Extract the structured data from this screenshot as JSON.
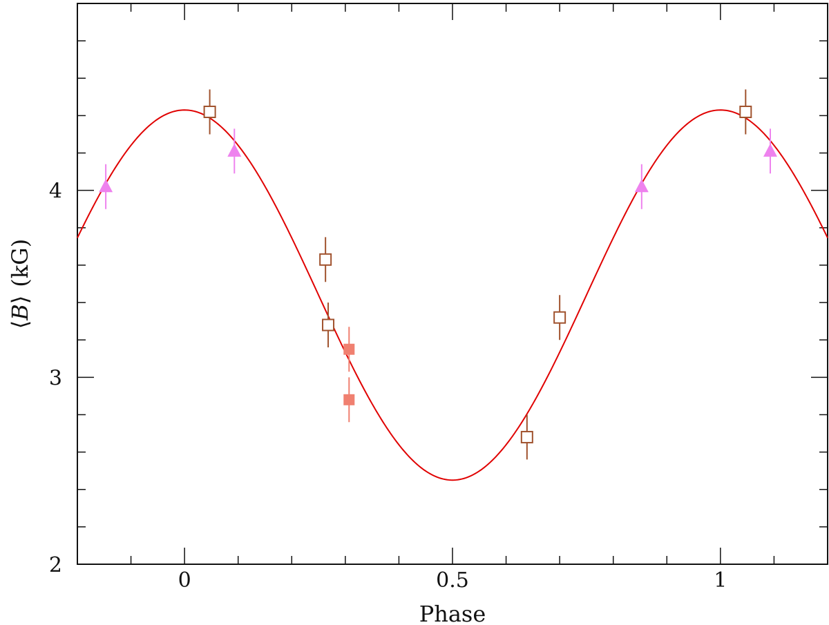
{
  "chart_data": {
    "type": "scatter",
    "xlabel": "Phase",
    "ylabel": "⟨B⟩ (kG)",
    "ylabel_parts": {
      "open": "⟨",
      "var": "B",
      "close": "⟩",
      "unit": "(kG)"
    },
    "xlim": [
      -0.2,
      1.2
    ],
    "ylim": [
      2,
      5
    ],
    "x_tick_labels": [
      {
        "value": 0,
        "label": "0"
      },
      {
        "value": 0.5,
        "label": "0.5"
      },
      {
        "value": 1,
        "label": "1"
      }
    ],
    "y_tick_labels": [
      {
        "value": 2,
        "label": "2"
      },
      {
        "value": 3,
        "label": "3"
      },
      {
        "value": 4,
        "label": "4"
      }
    ],
    "grid": false,
    "legend": "none",
    "fit_curve": {
      "type": "sinusoid",
      "color": "#e00000",
      "mean": 3.44,
      "amplitude": 0.99,
      "phase_of_max": 0.0
    },
    "series": [
      {
        "marker": "open-square",
        "color": "#a0522d",
        "points": [
          {
            "x": 0.047,
            "y": 4.42,
            "err": 0.12
          },
          {
            "x": 0.263,
            "y": 3.63,
            "err": 0.12
          },
          {
            "x": 0.268,
            "y": 3.28,
            "err": 0.12
          },
          {
            "x": 0.639,
            "y": 2.68,
            "err": 0.12
          },
          {
            "x": 0.7,
            "y": 3.32,
            "err": 0.12
          },
          {
            "x": 1.047,
            "y": 4.42,
            "err": 0.12
          }
        ]
      },
      {
        "marker": "filled-square",
        "color": "#f08070",
        "points": [
          {
            "x": 0.307,
            "y": 3.15,
            "err": 0.12
          },
          {
            "x": 0.307,
            "y": 2.88,
            "err": 0.12
          }
        ]
      },
      {
        "marker": "filled-triangle",
        "color": "#ee82ee",
        "points": [
          {
            "x": -0.147,
            "y": 4.02,
            "err": 0.12
          },
          {
            "x": 0.093,
            "y": 4.21,
            "err": 0.12
          },
          {
            "x": 0.853,
            "y": 4.02,
            "err": 0.12
          },
          {
            "x": 1.093,
            "y": 4.21,
            "err": 0.12
          }
        ]
      }
    ]
  }
}
